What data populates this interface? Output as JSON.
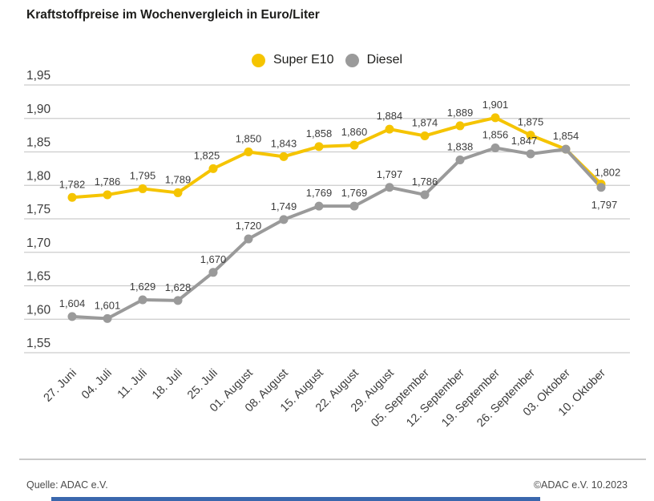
{
  "title": "Kraftstoffpreise im Wochenvergleich in Euro/Liter",
  "legend": [
    {
      "label": "Super E10",
      "color": "#F5C400"
    },
    {
      "label": "Diesel",
      "color": "#9A9A9A"
    }
  ],
  "footer": {
    "source": "Quelle: ADAC e.V.",
    "copyright": "©ADAC e.V. 10.2023"
  },
  "colors": {
    "super_e10": "#F5C400",
    "diesel": "#9A9A9A",
    "grid": "#cccccc",
    "text": "#3c3c3c",
    "bottom_bar": "#3a67ad"
  },
  "chart_data": {
    "type": "line",
    "title": "Kraftstoffpreise im Wochenvergleich in Euro/Liter",
    "xlabel": "",
    "ylabel": "Euro/Liter",
    "ylim": [
      1.55,
      1.95
    ],
    "ytick_step": 0.05,
    "grid": true,
    "legend_position": "top-center",
    "yticks": [
      "1,95",
      "1,90",
      "1,85",
      "1,80",
      "1,75",
      "1,70",
      "1,65",
      "1,60",
      "1,55"
    ],
    "categories": [
      "27. Juni",
      "04. Juli",
      "11. Juli",
      "18. Juli",
      "25. Juli",
      "01. August",
      "08. August",
      "15. August",
      "22. August",
      "29. August",
      "05. September",
      "12. September",
      "19. September",
      "26. September",
      "03. Oktober",
      "10. Oktober"
    ],
    "series": [
      {
        "name": "Super E10",
        "color": "#F5C400",
        "values": [
          1.782,
          1.786,
          1.795,
          1.789,
          1.825,
          1.85,
          1.843,
          1.858,
          1.86,
          1.884,
          1.874,
          1.889,
          1.901,
          1.875,
          1.854,
          1.802
        ],
        "labels": [
          "1,782",
          "1,786",
          "1,795",
          "1,789",
          "1,825",
          "1,850",
          "1,843",
          "1,858",
          "1,860",
          "1,884",
          "1,874",
          "1,889",
          "1,901",
          "1,875",
          "",
          "1,802"
        ]
      },
      {
        "name": "Diesel",
        "color": "#9A9A9A",
        "values": [
          1.604,
          1.601,
          1.629,
          1.628,
          1.67,
          1.72,
          1.749,
          1.769,
          1.769,
          1.797,
          1.786,
          1.838,
          1.856,
          1.847,
          1.854,
          1.797
        ],
        "labels": [
          "1,604",
          "1,601",
          "1,629",
          "1,628",
          "1,670",
          "1,720",
          "1,749",
          "1,769",
          "1,769",
          "1,797",
          "1,786",
          "1,838",
          "1,856",
          "1,847",
          "1,854",
          "1,797"
        ]
      }
    ]
  }
}
